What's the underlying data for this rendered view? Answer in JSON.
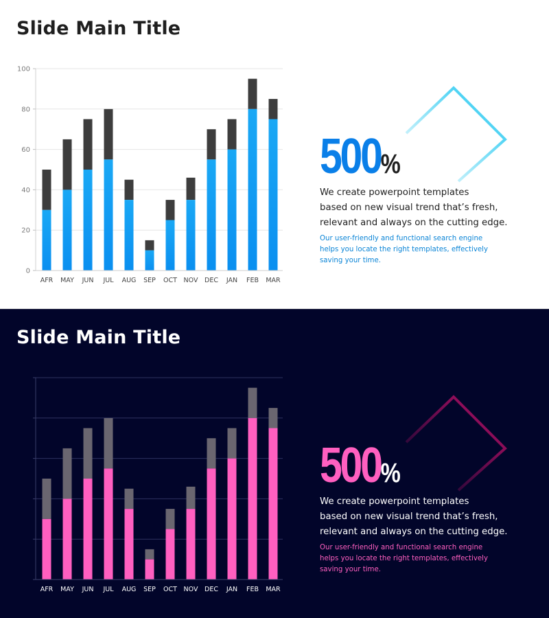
{
  "colors": {
    "light_primary": "#0a8ff0",
    "light_primary_top": "#1aa8f5",
    "light_stack": "#3d3d3d",
    "light_accent_text": "#0a84d6",
    "dark_background": "#02052a",
    "dark_primary": "#ff5fc0",
    "dark_stack": "#6a6670",
    "diamond_light": "#12c4f0",
    "diamond_dark": "#c0106a"
  },
  "slides": [
    {
      "theme": "light",
      "title": "Slide Main Title",
      "big_number": "500",
      "big_suffix": "%",
      "description": [
        "We create powerpoint templates",
        "based on new visual trend that’s fresh,",
        "relevant and always on the cutting edge."
      ],
      "subtext": [
        "Our user-friendly and functional search engine",
        "helps you locate the right templates, effectively",
        "saving your time."
      ]
    },
    {
      "theme": "dark",
      "title": "Slide Main Title",
      "big_number": "500",
      "big_suffix": "%",
      "description": [
        "We create powerpoint templates",
        "based on new visual trend that’s fresh,",
        "relevant and always on the cutting edge."
      ],
      "subtext": [
        "Our user-friendly and functional search engine",
        "helps you locate the right templates, effectively",
        "saving your time."
      ]
    }
  ],
  "chart_data": [
    {
      "type": "bar",
      "stacked": true,
      "theme": "light",
      "categories": [
        "AFR",
        "MAY",
        "JUN",
        "JUL",
        "AUG",
        "SEP",
        "OCT",
        "NOV",
        "DEC",
        "JAN",
        "FEB",
        "MAR"
      ],
      "series": [
        {
          "values": [
            30,
            40,
            50,
            55,
            35,
            10,
            25,
            35,
            55,
            60,
            80,
            75
          ]
        },
        {
          "values": [
            20,
            25,
            25,
            25,
            10,
            5,
            10,
            11,
            15,
            15,
            15,
            10
          ]
        }
      ],
      "ylim": [
        0,
        100
      ],
      "yticks": [
        0,
        20,
        40,
        60,
        80,
        100
      ],
      "show_y_tick_labels": true,
      "grid": true
    },
    {
      "type": "bar",
      "stacked": true,
      "theme": "dark",
      "categories": [
        "AFR",
        "MAY",
        "JUN",
        "JUL",
        "AUG",
        "SEP",
        "OCT",
        "NOV",
        "DEC",
        "JAN",
        "FEB",
        "MAR"
      ],
      "series": [
        {
          "values": [
            30,
            40,
            50,
            55,
            35,
            10,
            25,
            35,
            55,
            60,
            80,
            75
          ]
        },
        {
          "values": [
            20,
            25,
            25,
            25,
            10,
            5,
            10,
            11,
            15,
            15,
            15,
            10
          ]
        }
      ],
      "ylim": [
        0,
        100
      ],
      "yticks": [
        0,
        20,
        40,
        60,
        80,
        100
      ],
      "show_y_tick_labels": false,
      "grid": true
    }
  ]
}
